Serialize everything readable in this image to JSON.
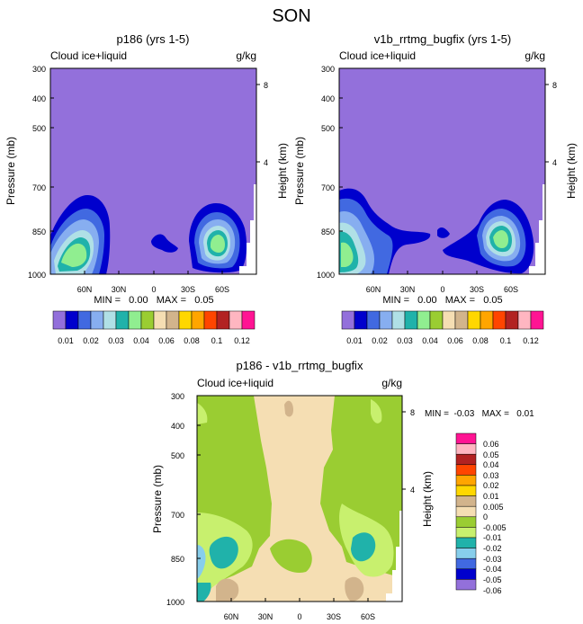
{
  "figure_title": "SON",
  "chart_data": [
    {
      "type": "filled-contour",
      "title": "p186 (yrs 1-5)",
      "left_label": "Cloud ice+liquid",
      "right_label": "g/kg",
      "ylabel": "Pressure (mb)",
      "y2label": "Height (km)",
      "yticks": [
        "300",
        "400",
        "500",
        "700",
        "850",
        "1000"
      ],
      "y2ticks": [
        "8",
        "4"
      ],
      "xticks": [
        "60N",
        "30N",
        "0",
        "30S",
        "60S"
      ],
      "stats": "MIN =   0.00   MAX =   0.05",
      "colorbar_labels": [
        "0.01",
        "0.02",
        "0.03",
        "0.04",
        "0.06",
        "0.08",
        "0.1",
        "0.12"
      ]
    },
    {
      "type": "filled-contour",
      "title": "v1b_rrtmg_bugfix (yrs 1-5)",
      "left_label": "Cloud ice+liquid",
      "right_label": "g/kg",
      "ylabel": "Pressure (mb)",
      "y2label": "Height (km)",
      "yticks": [
        "300",
        "400",
        "500",
        "700",
        "850",
        "1000"
      ],
      "y2ticks": [
        "8",
        "4"
      ],
      "xticks": [
        "60N",
        "30N",
        "0",
        "30S",
        "60S"
      ],
      "stats": "MIN =   0.00   MAX =   0.05",
      "colorbar_labels": [
        "0.01",
        "0.02",
        "0.03",
        "0.04",
        "0.06",
        "0.08",
        "0.1",
        "0.12"
      ]
    },
    {
      "type": "filled-contour",
      "title": "p186 - v1b_rrtmg_bugfix",
      "left_label": "Cloud ice+liquid",
      "right_label": "g/kg",
      "ylabel": "Pressure (mb)",
      "y2label": "Height (km)",
      "yticks": [
        "300",
        "400",
        "500",
        "700",
        "850",
        "1000"
      ],
      "y2ticks": [
        "8",
        "4"
      ],
      "xticks": [
        "60N",
        "30N",
        "0",
        "30S",
        "60S"
      ],
      "stats": "MIN =  -0.03   MAX =   0.01",
      "colorbar_labels": [
        "0.06",
        "0.05",
        "0.04",
        "0.03",
        "0.02",
        "0.01",
        "0.005",
        "0",
        "-0.005",
        "-0.01",
        "-0.02",
        "-0.03",
        "-0.04",
        "-0.05",
        "-0.06"
      ]
    }
  ],
  "colors": {
    "seq": [
      "#9370db",
      "#0000cd",
      "#4169e1",
      "#87aef0",
      "#b0e0e6",
      "#20b2aa",
      "#90ee90",
      "#9acd32",
      "#f5deb3",
      "#d2b48c",
      "#ffd700",
      "#ffa500",
      "#ff4500",
      "#b22222",
      "#ffb6c1",
      "#ff1493"
    ],
    "diff": [
      "#ff1493",
      "#ffb6c1",
      "#b22222",
      "#ff4500",
      "#ffa500",
      "#ffd700",
      "#d2b48c",
      "#f5deb3",
      "#9acd32",
      "#c8f06e",
      "#20b2aa",
      "#87ceeb",
      "#4169e1",
      "#0000cd",
      "#9370db"
    ]
  }
}
